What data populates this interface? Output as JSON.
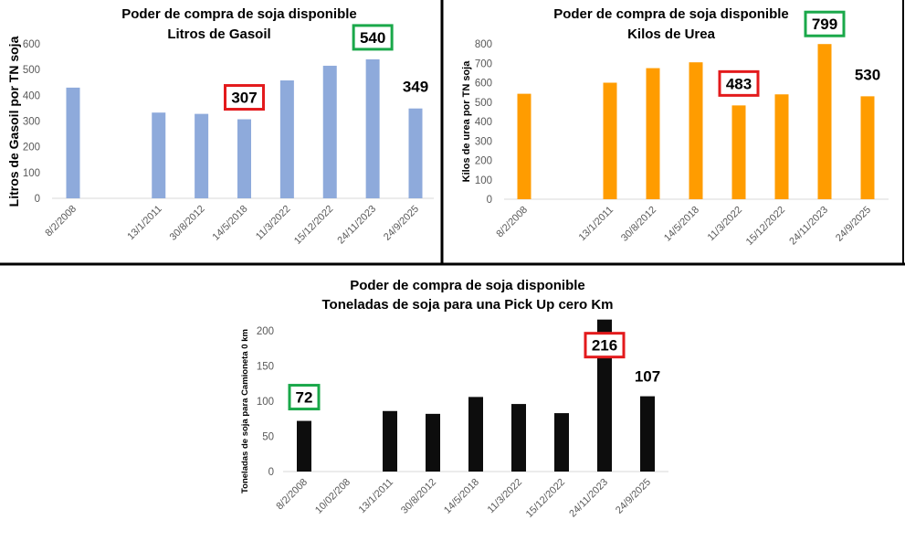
{
  "chart_data": [
    {
      "type": "bar",
      "title": "Poder de compra de soja disponible",
      "subtitle": "Litros de Gasoil",
      "xlabel": "",
      "ylabel": "Litros de Gasoil por TN soja",
      "categories": [
        "8/2/2008",
        "",
        "13/1/2011",
        "30/8/2012",
        "14/5/2018",
        "11/3/2022",
        "15/12/2022",
        "24/11/2023",
        "24/9/2025"
      ],
      "values": [
        430,
        null,
        333,
        328,
        307,
        458,
        515,
        540,
        349
      ],
      "ylim": [
        0,
        600
      ],
      "yticks": [
        0,
        100,
        200,
        300,
        400,
        500,
        600
      ],
      "bar_color": "#8eaadb",
      "grid": false,
      "annotations": [
        {
          "index": 4,
          "text": "307",
          "box_color": "#e31a1c"
        },
        {
          "index": 7,
          "text": "540",
          "box_color": "#1aa84a"
        },
        {
          "index": 8,
          "text": "349",
          "box_color": null
        }
      ]
    },
    {
      "type": "bar",
      "title": "Poder de compra de soja disponible",
      "subtitle": "Kilos de Urea",
      "xlabel": "",
      "ylabel": "Kilos de urea por TN soja",
      "categories": [
        "8/2/2008",
        "",
        "13/1/2011",
        "30/8/2012",
        "14/5/2018",
        "11/3/2022",
        "15/12/2022",
        "24/11/2023",
        "24/9/2025"
      ],
      "values": [
        543,
        null,
        600,
        675,
        705,
        483,
        540,
        799,
        530
      ],
      "ylim": [
        0,
        800
      ],
      "yticks": [
        0,
        100,
        200,
        300,
        400,
        500,
        600,
        700,
        800
      ],
      "bar_color": "#ff9c00",
      "grid": false,
      "annotations": [
        {
          "index": 5,
          "text": "483",
          "box_color": "#e31a1c"
        },
        {
          "index": 7,
          "text": "799",
          "box_color": "#1aa84a"
        },
        {
          "index": 8,
          "text": "530",
          "box_color": null
        }
      ]
    },
    {
      "type": "bar",
      "title": "Poder de compra de soja disponible",
      "subtitle": "Toneladas de soja para una Pick Up cero Km",
      "xlabel": "",
      "ylabel": "Toneladas de soja para Camioneta 0 km",
      "categories": [
        "8/2/2008",
        "10/02/208",
        "13/1/2011",
        "30/8/2012",
        "14/5/2018",
        "11/3/2022",
        "15/12/2022",
        "24/11/2023",
        "24/9/2025"
      ],
      "values": [
        72,
        null,
        86,
        82,
        106,
        96,
        83,
        216,
        107
      ],
      "ylim": [
        0,
        200
      ],
      "yticks": [
        0,
        50,
        100,
        150,
        200
      ],
      "bar_color": "#0d0d0d",
      "grid": false,
      "annotations": [
        {
          "index": 0,
          "text": "72",
          "box_color": "#1aa84a"
        },
        {
          "index": 7,
          "text": "216",
          "box_color": "#e31a1c"
        },
        {
          "index": 8,
          "text": "107",
          "box_color": null
        }
      ]
    }
  ]
}
